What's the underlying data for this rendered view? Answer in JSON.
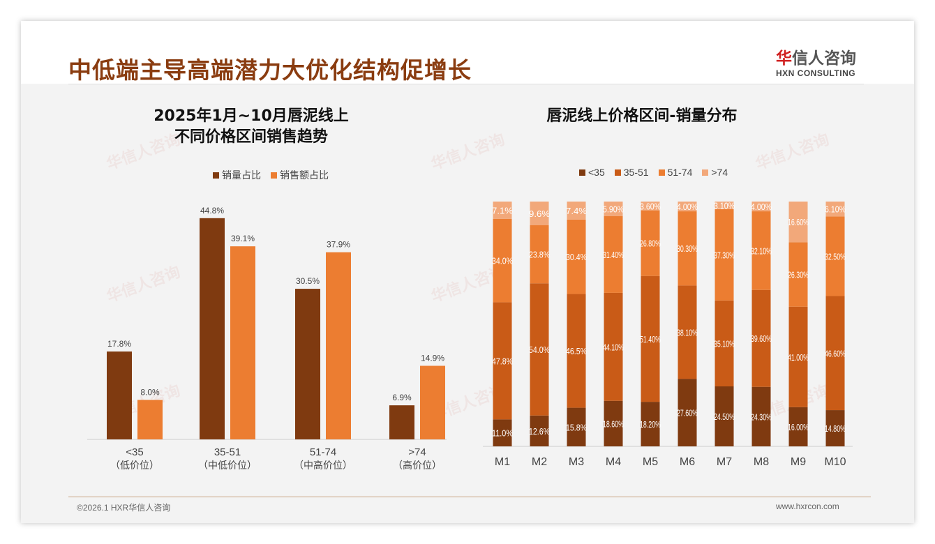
{
  "header": {
    "title": "中低端主导高端潜力大优化结构促增长",
    "logo_cn": "华信人咨询",
    "logo_en": "HXN CONSULTING"
  },
  "footer": {
    "copyright": "©2026.1 HXR华信人咨询",
    "url": "www.hxrcon.com"
  },
  "colors": {
    "c1": "#7f3a10",
    "c2": "#c95b17",
    "c3": "#ec7d31",
    "c4": "#f2a87a"
  },
  "chart_data": [
    {
      "type": "bar",
      "title_line1": "2025年1月~10月唇泥线上",
      "title_line2": "不同价格区间销售趋势",
      "categories": [
        "<35",
        "35-51",
        "51-74",
        ">74"
      ],
      "category_sub": [
        "（低价位）",
        "（中低价位）",
        "（中高价位）",
        "（高价位）"
      ],
      "series": [
        {
          "name": "销量占比",
          "values": [
            17.8,
            44.8,
            30.5,
            6.9
          ],
          "labels": [
            "17.8%",
            "44.8%",
            "30.5%",
            "6.9%"
          ]
        },
        {
          "name": "销售额占比",
          "values": [
            8.0,
            39.1,
            37.9,
            14.9
          ],
          "labels": [
            "8.0%",
            "39.1%",
            "37.9%",
            "14.9%"
          ]
        }
      ],
      "ylim": [
        0,
        50
      ],
      "legend": "top"
    },
    {
      "type": "bar",
      "stacked": true,
      "title": "唇泥线上价格区间-销量分布",
      "categories": [
        "M1",
        "M2",
        "M3",
        "M4",
        "M5",
        "M6",
        "M7",
        "M8",
        "M9",
        "M10"
      ],
      "series": [
        {
          "name": "<35",
          "values": [
            11.0,
            12.6,
            15.8,
            18.6,
            18.2,
            27.6,
            24.5,
            24.3,
            16.0,
            14.8
          ],
          "labels": [
            "11.0%",
            "12.6%",
            "15.8%",
            "18.60%",
            "18.20%",
            "27.60%",
            "24.50%",
            "24.30%",
            "16.00%",
            "14.80%"
          ]
        },
        {
          "name": "35-51",
          "values": [
            47.8,
            54.0,
            46.5,
            44.1,
            51.4,
            38.1,
            35.1,
            39.6,
            41.0,
            46.6
          ],
          "labels": [
            "47.8%",
            "54.0%",
            "46.5%",
            "44.10%",
            "51.40%",
            "38.10%",
            "35.10%",
            "39.60%",
            "41.00%",
            "46.60%"
          ]
        },
        {
          "name": "51-74",
          "values": [
            34.0,
            23.8,
            30.4,
            31.4,
            26.8,
            30.3,
            37.3,
            32.1,
            26.3,
            32.5
          ],
          "labels": [
            "34.0%",
            "23.8%",
            "30.4%",
            "31.40%",
            "26.80%",
            "30.30%",
            "37.30%",
            "32.10%",
            "26.30%",
            "32.50%"
          ]
        },
        {
          "name": ">74",
          "values": [
            7.1,
            9.6,
            7.4,
            5.9,
            3.6,
            4.0,
            3.1,
            4.0,
            16.6,
            6.1
          ],
          "labels": [
            "7.1%",
            "9.6%",
            "7.4%",
            "5.90%",
            "3.60%",
            "4.00%",
            "3.10%",
            "4.00%",
            "16.60%",
            "6.10%"
          ]
        }
      ],
      "ylim": [
        0,
        100
      ],
      "legend": "top"
    }
  ]
}
